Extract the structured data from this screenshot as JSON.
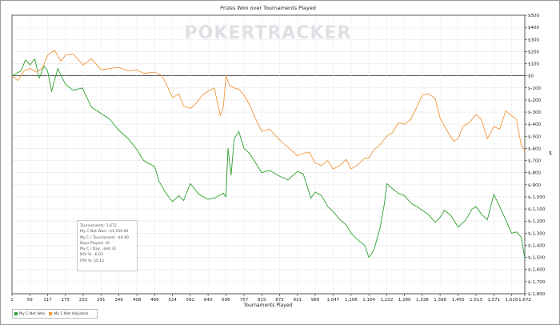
{
  "chart_data": {
    "type": "line",
    "title": "Prizes Won over Tournaments Played",
    "xlabel": "Tournaments Played",
    "ylabel": "$",
    "watermark": "POKERTRACKER",
    "xlim": [
      1,
      1672
    ],
    "ylim": [
      -1800,
      500
    ],
    "x_ticks": [
      "1",
      "59",
      "117",
      "175",
      "233",
      "291",
      "349",
      "408",
      "466",
      "524",
      "582",
      "640",
      "698",
      "757",
      "815",
      "873",
      "931",
      "989",
      "1,047",
      "1,106",
      "1,164",
      "1,222",
      "1,280",
      "1,338",
      "1,396",
      "1,455",
      "1,513",
      "1,571",
      "1,629",
      "1,672"
    ],
    "y_ticks": [
      "$500",
      "$400",
      "$300",
      "$200",
      "$100",
      "$0",
      "$-100",
      "$-200",
      "$-300",
      "$-400",
      "$-500",
      "$-600",
      "$-700",
      "$-800",
      "$-900",
      "$-1,000",
      "$-1,100",
      "$-1,200",
      "$-1,300",
      "$-1,400",
      "$-1,500",
      "$-1,600",
      "$-1,700",
      "$-1,800"
    ],
    "grid": true,
    "legend_position": "bottom-left",
    "series": [
      {
        "name": "My C Net Won",
        "color": "#2ca02c",
        "x": [
          1,
          30,
          45,
          60,
          75,
          90,
          105,
          117,
          130,
          150,
          175,
          200,
          230,
          260,
          291,
          320,
          349,
          380,
          408,
          430,
          466,
          480,
          500,
          524,
          545,
          560,
          582,
          610,
          640,
          660,
          690,
          698,
          705,
          715,
          725,
          740,
          757,
          775,
          800,
          815,
          840,
          873,
          900,
          931,
          950,
          975,
          989,
          1010,
          1030,
          1047,
          1070,
          1090,
          1106,
          1130,
          1150,
          1164,
          1180,
          1200,
          1215,
          1222,
          1240,
          1260,
          1280,
          1300,
          1320,
          1338,
          1360,
          1380,
          1396,
          1410,
          1430,
          1455,
          1480,
          1500,
          1513,
          1530,
          1550,
          1571,
          1590,
          1610,
          1629,
          1645,
          1660,
          1672
        ],
        "y": [
          0,
          40,
          130,
          90,
          140,
          -20,
          80,
          40,
          -130,
          60,
          -70,
          -120,
          -100,
          -260,
          -310,
          -360,
          -450,
          -520,
          -610,
          -700,
          -750,
          -870,
          -960,
          -1040,
          -990,
          -1030,
          -890,
          -980,
          -1020,
          -1010,
          -970,
          -1000,
          -600,
          -820,
          -520,
          -460,
          -600,
          -640,
          -740,
          -800,
          -780,
          -830,
          -860,
          -790,
          -810,
          -1010,
          -960,
          -990,
          -1080,
          -1120,
          -1190,
          -1230,
          -1300,
          -1360,
          -1400,
          -1500,
          -1440,
          -1260,
          -1050,
          -890,
          -930,
          -970,
          -990,
          -1050,
          -1080,
          -1110,
          -1150,
          -1210,
          -1170,
          -1110,
          -1150,
          -1250,
          -1190,
          -1100,
          -1080,
          -1140,
          -1190,
          -980,
          -1080,
          -1190,
          -1300,
          -1290,
          -1330,
          -1509
        ]
      },
      {
        "name": "My C Net Adjusted",
        "color": "#f0963a",
        "x": [
          1,
          20,
          40,
          60,
          80,
          100,
          117,
          140,
          160,
          175,
          200,
          233,
          260,
          291,
          320,
          349,
          380,
          408,
          430,
          466,
          490,
          510,
          524,
          545,
          560,
          582,
          600,
          620,
          640,
          660,
          680,
          690,
          698,
          710,
          725,
          740,
          757,
          775,
          790,
          815,
          840,
          873,
          900,
          931,
          950,
          970,
          989,
          1010,
          1030,
          1047,
          1070,
          1090,
          1106,
          1130,
          1150,
          1164,
          1180,
          1200,
          1222,
          1240,
          1260,
          1280,
          1300,
          1320,
          1338,
          1360,
          1380,
          1396,
          1420,
          1440,
          1455,
          1470,
          1490,
          1513,
          1530,
          1550,
          1571,
          1590,
          1610,
          1629,
          1645,
          1660,
          1672
        ],
        "y": [
          0,
          -40,
          40,
          60,
          30,
          60,
          170,
          210,
          120,
          170,
          180,
          90,
          140,
          50,
          60,
          70,
          40,
          50,
          20,
          30,
          0,
          -100,
          -180,
          -150,
          -250,
          -270,
          -230,
          -160,
          -130,
          -100,
          -330,
          -250,
          0,
          -80,
          -100,
          -110,
          -160,
          -240,
          -330,
          -460,
          -440,
          -530,
          -590,
          -660,
          -640,
          -630,
          -720,
          -740,
          -700,
          -770,
          -740,
          -690,
          -770,
          -730,
          -680,
          -680,
          -610,
          -570,
          -500,
          -470,
          -390,
          -400,
          -360,
          -260,
          -160,
          -150,
          -190,
          -350,
          -460,
          -540,
          -520,
          -420,
          -390,
          -320,
          -360,
          -520,
          -420,
          -440,
          -290,
          -330,
          -360,
          -570,
          -620
        ]
      }
    ]
  },
  "stats": {
    "tournaments": "Tournaments: 1,672",
    "net_won": "My C Net Won: -$1,509.00",
    "per_tournament": "My C / Tournament: -$0.90",
    "days_played": "Days Played: 16",
    "per_day": "My C / Day: -$94.31",
    "roi": "ROI %: -6.03",
    "itm": "ITM %: 25.12"
  },
  "legend": {
    "net_won": "My C Net Won",
    "net_adjusted": "My C Net Adjusted"
  }
}
